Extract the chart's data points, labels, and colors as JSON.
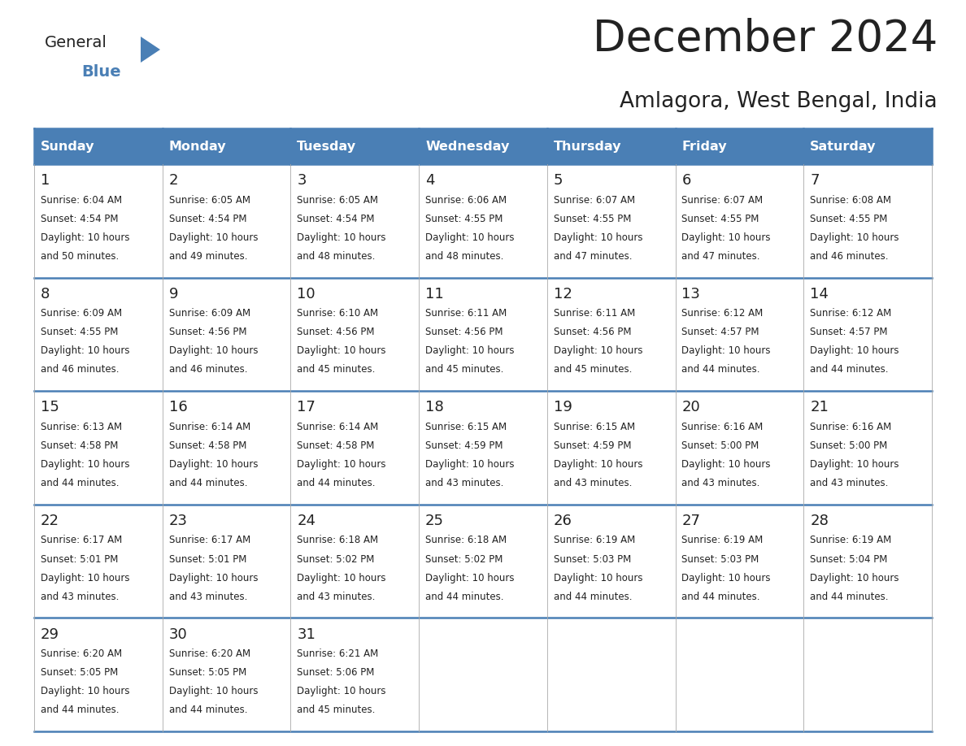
{
  "title": "December 2024",
  "subtitle": "Amlagora, West Bengal, India",
  "header_color": "#4a7fb5",
  "header_text_color": "#ffffff",
  "border_color": "#4a7fb5",
  "text_color": "#222222",
  "days_of_week": [
    "Sunday",
    "Monday",
    "Tuesday",
    "Wednesday",
    "Thursday",
    "Friday",
    "Saturday"
  ],
  "weeks": [
    [
      {
        "day": "1",
        "sunrise": "6:04 AM",
        "sunset": "4:54 PM",
        "daylight_h": "10 hours",
        "daylight_m": "and 50 minutes."
      },
      {
        "day": "2",
        "sunrise": "6:05 AM",
        "sunset": "4:54 PM",
        "daylight_h": "10 hours",
        "daylight_m": "and 49 minutes."
      },
      {
        "day": "3",
        "sunrise": "6:05 AM",
        "sunset": "4:54 PM",
        "daylight_h": "10 hours",
        "daylight_m": "and 48 minutes."
      },
      {
        "day": "4",
        "sunrise": "6:06 AM",
        "sunset": "4:55 PM",
        "daylight_h": "10 hours",
        "daylight_m": "and 48 minutes."
      },
      {
        "day": "5",
        "sunrise": "6:07 AM",
        "sunset": "4:55 PM",
        "daylight_h": "10 hours",
        "daylight_m": "and 47 minutes."
      },
      {
        "day": "6",
        "sunrise": "6:07 AM",
        "sunset": "4:55 PM",
        "daylight_h": "10 hours",
        "daylight_m": "and 47 minutes."
      },
      {
        "day": "7",
        "sunrise": "6:08 AM",
        "sunset": "4:55 PM",
        "daylight_h": "10 hours",
        "daylight_m": "and 46 minutes."
      }
    ],
    [
      {
        "day": "8",
        "sunrise": "6:09 AM",
        "sunset": "4:55 PM",
        "daylight_h": "10 hours",
        "daylight_m": "and 46 minutes."
      },
      {
        "day": "9",
        "sunrise": "6:09 AM",
        "sunset": "4:56 PM",
        "daylight_h": "10 hours",
        "daylight_m": "and 46 minutes."
      },
      {
        "day": "10",
        "sunrise": "6:10 AM",
        "sunset": "4:56 PM",
        "daylight_h": "10 hours",
        "daylight_m": "and 45 minutes."
      },
      {
        "day": "11",
        "sunrise": "6:11 AM",
        "sunset": "4:56 PM",
        "daylight_h": "10 hours",
        "daylight_m": "and 45 minutes."
      },
      {
        "day": "12",
        "sunrise": "6:11 AM",
        "sunset": "4:56 PM",
        "daylight_h": "10 hours",
        "daylight_m": "and 45 minutes."
      },
      {
        "day": "13",
        "sunrise": "6:12 AM",
        "sunset": "4:57 PM",
        "daylight_h": "10 hours",
        "daylight_m": "and 44 minutes."
      },
      {
        "day": "14",
        "sunrise": "6:12 AM",
        "sunset": "4:57 PM",
        "daylight_h": "10 hours",
        "daylight_m": "and 44 minutes."
      }
    ],
    [
      {
        "day": "15",
        "sunrise": "6:13 AM",
        "sunset": "4:58 PM",
        "daylight_h": "10 hours",
        "daylight_m": "and 44 minutes."
      },
      {
        "day": "16",
        "sunrise": "6:14 AM",
        "sunset": "4:58 PM",
        "daylight_h": "10 hours",
        "daylight_m": "and 44 minutes."
      },
      {
        "day": "17",
        "sunrise": "6:14 AM",
        "sunset": "4:58 PM",
        "daylight_h": "10 hours",
        "daylight_m": "and 44 minutes."
      },
      {
        "day": "18",
        "sunrise": "6:15 AM",
        "sunset": "4:59 PM",
        "daylight_h": "10 hours",
        "daylight_m": "and 43 minutes."
      },
      {
        "day": "19",
        "sunrise": "6:15 AM",
        "sunset": "4:59 PM",
        "daylight_h": "10 hours",
        "daylight_m": "and 43 minutes."
      },
      {
        "day": "20",
        "sunrise": "6:16 AM",
        "sunset": "5:00 PM",
        "daylight_h": "10 hours",
        "daylight_m": "and 43 minutes."
      },
      {
        "day": "21",
        "sunrise": "6:16 AM",
        "sunset": "5:00 PM",
        "daylight_h": "10 hours",
        "daylight_m": "and 43 minutes."
      }
    ],
    [
      {
        "day": "22",
        "sunrise": "6:17 AM",
        "sunset": "5:01 PM",
        "daylight_h": "10 hours",
        "daylight_m": "and 43 minutes."
      },
      {
        "day": "23",
        "sunrise": "6:17 AM",
        "sunset": "5:01 PM",
        "daylight_h": "10 hours",
        "daylight_m": "and 43 minutes."
      },
      {
        "day": "24",
        "sunrise": "6:18 AM",
        "sunset": "5:02 PM",
        "daylight_h": "10 hours",
        "daylight_m": "and 43 minutes."
      },
      {
        "day": "25",
        "sunrise": "6:18 AM",
        "sunset": "5:02 PM",
        "daylight_h": "10 hours",
        "daylight_m": "and 44 minutes."
      },
      {
        "day": "26",
        "sunrise": "6:19 AM",
        "sunset": "5:03 PM",
        "daylight_h": "10 hours",
        "daylight_m": "and 44 minutes."
      },
      {
        "day": "27",
        "sunrise": "6:19 AM",
        "sunset": "5:03 PM",
        "daylight_h": "10 hours",
        "daylight_m": "and 44 minutes."
      },
      {
        "day": "28",
        "sunrise": "6:19 AM",
        "sunset": "5:04 PM",
        "daylight_h": "10 hours",
        "daylight_m": "and 44 minutes."
      }
    ],
    [
      {
        "day": "29",
        "sunrise": "6:20 AM",
        "sunset": "5:05 PM",
        "daylight_h": "10 hours",
        "daylight_m": "and 44 minutes."
      },
      {
        "day": "30",
        "sunrise": "6:20 AM",
        "sunset": "5:05 PM",
        "daylight_h": "10 hours",
        "daylight_m": "and 44 minutes."
      },
      {
        "day": "31",
        "sunrise": "6:21 AM",
        "sunset": "5:06 PM",
        "daylight_h": "10 hours",
        "daylight_m": "and 45 minutes."
      },
      null,
      null,
      null,
      null
    ]
  ]
}
